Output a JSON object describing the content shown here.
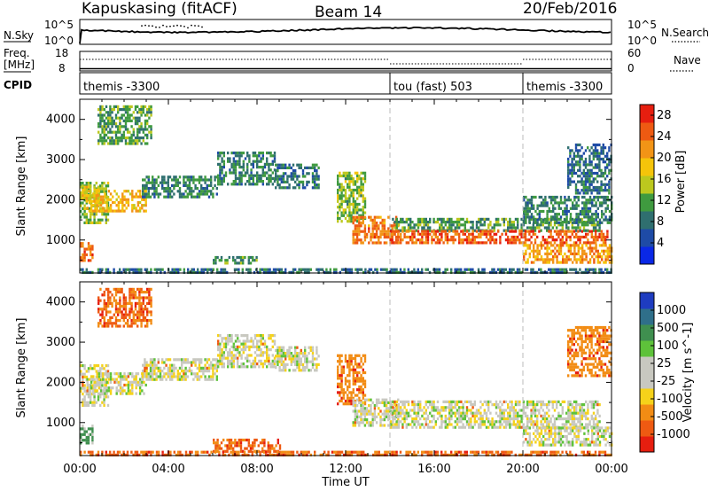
{
  "header": {
    "station": "Kapuskasing (fitACF)",
    "beam": "Beam 14",
    "date": "20/Feb/2016"
  },
  "strip_labels": {
    "nsky": "N.Sky",
    "nsky_top": "10^5",
    "nsky_bottom": "10^0",
    "nsearch": "N.Search",
    "nsearch_top": "10^5",
    "nsearch_bottom": "10^0",
    "freq": "Freq.",
    "freq_unit": "[MHz]",
    "freq_top": "18",
    "freq_bottom": "8",
    "nave": "Nave",
    "nave_top": "60",
    "nave_bottom": "0",
    "cpid": "CPID"
  },
  "cpid_segments": [
    {
      "label": "themis -3300",
      "start_hour": 0,
      "end_hour": 14
    },
    {
      "label": "tou (fast) 503",
      "start_hour": 14,
      "end_hour": 20
    },
    {
      "label": "themis -3300",
      "start_hour": 20,
      "end_hour": 24
    }
  ],
  "colors": {
    "power_scale": [
      "#0a28e6",
      "#1e4ba6",
      "#2f6f6f",
      "#3f9a3f",
      "#bcc81e",
      "#f5c40a",
      "#f29416",
      "#ee5a12",
      "#e61e0f"
    ],
    "velocity_scale": [
      "#1e3cc0",
      "#2f6f8a",
      "#3f8f4f",
      "#5ec23a",
      "#c8c8c0",
      "#c8c8c0",
      "#f5d21a",
      "#f28c14",
      "#ee5a12",
      "#e61e0f"
    ]
  },
  "chart_data": [
    {
      "type": "heatmap",
      "panel": "power",
      "title": "Kapuskasing (fitACF) Beam 14 20/Feb/2016",
      "xlabel": "Time UT",
      "ylabel": "Slant Range [km]",
      "x_ticks": [
        "00:00",
        "04:00",
        "08:00",
        "12:00",
        "16:00",
        "20:00",
        "00:00"
      ],
      "x_range_hours": [
        0,
        24
      ],
      "y_ticks": [
        "1000",
        "2000",
        "3000",
        "4000"
      ],
      "y_range_km": [
        180,
        4500
      ],
      "colorbar_label": "Power [dB]",
      "colorbar_ticks": [
        "4",
        "8",
        "12",
        "16",
        "20",
        "24",
        "28"
      ],
      "colorbar_range": [
        0,
        30
      ],
      "dashed_lines_hours": [
        14,
        20
      ],
      "echo_bands": [
        {
          "t0": 0.0,
          "t1": 1.3,
          "r0": 1450,
          "r1": 2450,
          "level": 12
        },
        {
          "t0": 0.3,
          "t1": 3.0,
          "r0": 1750,
          "r1": 2250,
          "level": 18
        },
        {
          "t0": 0.0,
          "t1": 0.8,
          "r0": 1950,
          "r1": 2350,
          "level": 16
        },
        {
          "t0": 0.0,
          "t1": 0.6,
          "r0": 500,
          "r1": 950,
          "level": 24
        },
        {
          "t0": 0.8,
          "t1": 3.2,
          "r0": 3400,
          "r1": 4350,
          "level": 10
        },
        {
          "t0": 2.8,
          "t1": 6.2,
          "r0": 2100,
          "r1": 2600,
          "level": 8
        },
        {
          "t0": 6.2,
          "t1": 8.8,
          "r0": 2400,
          "r1": 3200,
          "level": 8
        },
        {
          "t0": 6.0,
          "t1": 8.0,
          "r0": 400,
          "r1": 600,
          "level": 9
        },
        {
          "t0": 8.8,
          "t1": 10.8,
          "r0": 2300,
          "r1": 2900,
          "level": 7
        },
        {
          "t0": 11.6,
          "t1": 12.9,
          "r0": 1500,
          "r1": 2700,
          "level": 12
        },
        {
          "t0": 12.3,
          "t1": 14.4,
          "r0": 900,
          "r1": 1600,
          "level": 22
        },
        {
          "t0": 14.0,
          "t1": 23.5,
          "r0": 1250,
          "r1": 1550,
          "level": 10
        },
        {
          "t0": 14.0,
          "t1": 23.8,
          "r0": 900,
          "r1": 1250,
          "level": 24
        },
        {
          "t0": 20.0,
          "t1": 24.0,
          "r0": 1450,
          "r1": 2100,
          "level": 8
        },
        {
          "t0": 20.0,
          "t1": 24.0,
          "r0": 450,
          "r1": 900,
          "level": 20
        },
        {
          "t0": 22.0,
          "t1": 24.0,
          "r0": 2200,
          "r1": 3400,
          "level": 6
        },
        {
          "t0": 0.0,
          "t1": 24.0,
          "r0": 180,
          "r1": 300,
          "level": 6
        }
      ]
    },
    {
      "type": "heatmap",
      "panel": "velocity",
      "xlabel": "Time UT",
      "ylabel": "Slant Range [km]",
      "x_ticks": [
        "00:00",
        "04:00",
        "08:00",
        "12:00",
        "16:00",
        "20:00",
        "00:00"
      ],
      "x_range_hours": [
        0,
        24
      ],
      "y_ticks": [
        "1000",
        "2000",
        "3000",
        "4000"
      ],
      "y_range_km": [
        180,
        4500
      ],
      "colorbar_label": "Velocity [m s^-1]",
      "colorbar_ticks": [
        "1000",
        "500",
        "100",
        "25",
        "-25",
        "-100",
        "-500",
        "-1000"
      ],
      "dashed_lines_hours": [
        14,
        20
      ],
      "echo_bands": [
        {
          "t0": 0.0,
          "t1": 1.3,
          "r0": 1450,
          "r1": 2450,
          "vel": 0
        },
        {
          "t0": 0.3,
          "t1": 3.0,
          "r0": 1750,
          "r1": 2250,
          "vel": 0
        },
        {
          "t0": 0.0,
          "t1": 0.6,
          "r0": 500,
          "r1": 950,
          "vel": 150
        },
        {
          "t0": 0.8,
          "t1": 3.2,
          "r0": 3400,
          "r1": 4350,
          "vel": -300
        },
        {
          "t0": 2.8,
          "t1": 6.2,
          "r0": 2100,
          "r1": 2600,
          "vel": 0
        },
        {
          "t0": 6.2,
          "t1": 8.8,
          "r0": 2400,
          "r1": 3200,
          "vel": 0
        },
        {
          "t0": 6.0,
          "t1": 9.0,
          "r0": 300,
          "r1": 600,
          "vel": -300
        },
        {
          "t0": 8.8,
          "t1": 10.8,
          "r0": 2300,
          "r1": 2900,
          "vel": 0
        },
        {
          "t0": 11.6,
          "t1": 12.9,
          "r0": 1500,
          "r1": 2700,
          "vel": -100
        },
        {
          "t0": 12.3,
          "t1": 14.4,
          "r0": 900,
          "r1": 1600,
          "vel": 0
        },
        {
          "t0": 14.0,
          "t1": 23.5,
          "r0": 900,
          "r1": 1550,
          "vel": 0
        },
        {
          "t0": 20.0,
          "t1": 24.0,
          "r0": 450,
          "r1": 900,
          "vel": 0
        },
        {
          "t0": 22.0,
          "t1": 24.0,
          "r0": 2200,
          "r1": 3400,
          "vel": -200
        },
        {
          "t0": 0.0,
          "t1": 24.0,
          "r0": 180,
          "r1": 300,
          "vel": -300
        }
      ]
    }
  ]
}
